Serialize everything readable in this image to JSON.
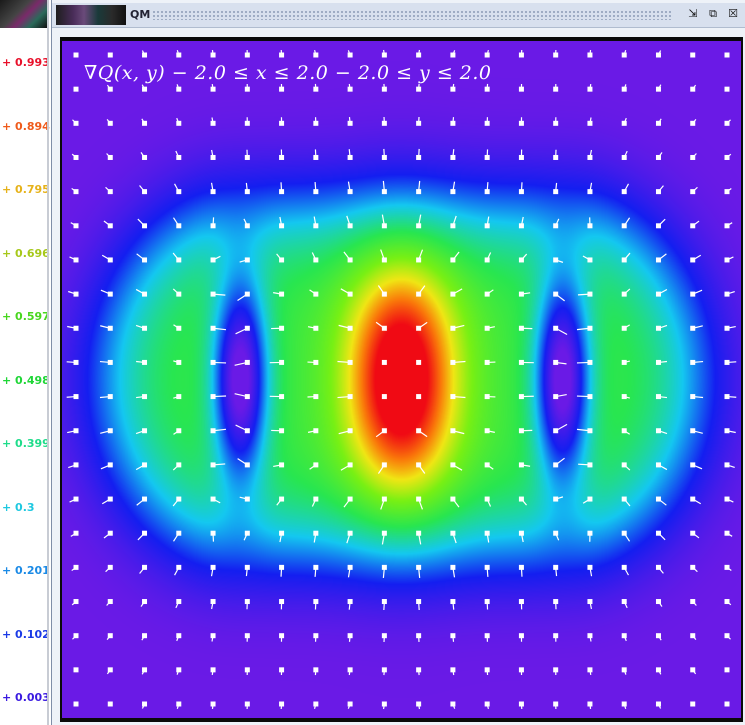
{
  "colorbar": {
    "labels": [
      {
        "text": "+ 0.993",
        "color": "#e8102a"
      },
      {
        "text": "+ 0.894",
        "color": "#ef5a1a"
      },
      {
        "text": "+ 0.795",
        "color": "#e6b21a"
      },
      {
        "text": "+ 0.696",
        "color": "#a6c81a"
      },
      {
        "text": "+ 0.597",
        "color": "#48d61e"
      },
      {
        "text": "+ 0.498",
        "color": "#1ed636"
      },
      {
        "text": "+ 0.399",
        "color": "#1edc8a"
      },
      {
        "text": "+ 0.3",
        "color": "#1ec8e0"
      },
      {
        "text": "+ 0.201",
        "color": "#1a8ae6"
      },
      {
        "text": "+ 0.102",
        "color": "#1a3ae6"
      },
      {
        "text": "+ 0.003",
        "color": "#3a1ae0"
      }
    ]
  },
  "window": {
    "title": "QM",
    "buttons": {
      "minimize": "⇲",
      "maximize": "⧉",
      "close": "☒"
    }
  },
  "plot": {
    "heading": "∇Q(x, y)    − 2.0 ≤ x ≤ 2.0    − 2.0 ≤ y ≤ 2.0",
    "x_range": [
      -2.0,
      2.0
    ],
    "y_range": [
      -2.0,
      2.0
    ],
    "value_range": [
      0.003,
      0.993
    ],
    "colormap": "rainbow-violet-to-red",
    "background_color": "#6a1ae6",
    "arrow_color": "#ffffff",
    "arrow_grid": [
      20,
      20
    ]
  }
}
